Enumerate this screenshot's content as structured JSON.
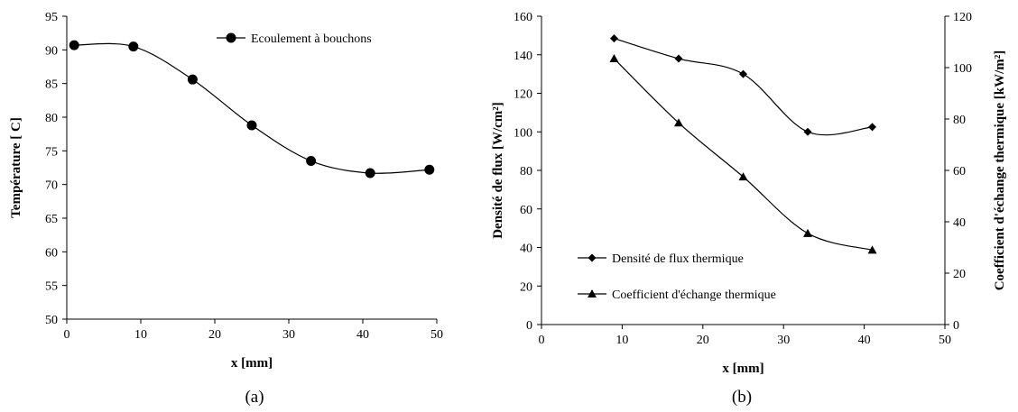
{
  "chart_data": [
    {
      "type": "line",
      "panel_label": "(a)",
      "xlabel": "x [mm]",
      "ylabel": "Température [  C]",
      "xlim": [
        0,
        50
      ],
      "ylim": [
        50,
        95
      ],
      "xticks": [
        0,
        10,
        20,
        30,
        40,
        50
      ],
      "yticks": [
        50,
        55,
        60,
        65,
        70,
        75,
        80,
        85,
        90,
        95
      ],
      "grid": false,
      "legend_position": "top-right",
      "series": [
        {
          "name": "Ecoulement à bouchons",
          "marker": "circle",
          "x": [
            1,
            9,
            17,
            25,
            33,
            41,
            49
          ],
          "y": [
            90.7,
            90.5,
            85.6,
            78.8,
            73.5,
            71.7,
            72.2
          ]
        }
      ]
    },
    {
      "type": "line",
      "panel_label": "(b)",
      "xlabel": "x [mm]",
      "ylabel": "Densité de  flux [W/cm²]",
      "y2label": "Coefficient d'échange thermique [kW/m²]",
      "xlim": [
        0,
        50
      ],
      "ylim": [
        0,
        160
      ],
      "y2lim": [
        0,
        120
      ],
      "xticks": [
        0,
        10,
        20,
        30,
        40,
        50
      ],
      "yticks": [
        0,
        20,
        40,
        60,
        80,
        100,
        120,
        140,
        160
      ],
      "y2ticks": [
        0,
        20,
        40,
        60,
        80,
        100,
        120
      ],
      "grid": false,
      "legend_position": "bottom-left",
      "series": [
        {
          "name": "Densité de flux thermique",
          "marker": "diamond",
          "axis": "left",
          "x": [
            9,
            17,
            25,
            33,
            41
          ],
          "y": [
            148.5,
            138,
            130,
            100,
            102.5
          ]
        },
        {
          "name": "Coefficient d'échange thermique",
          "marker": "triangle",
          "axis": "right",
          "x": [
            9,
            17,
            25,
            33,
            41
          ],
          "y": [
            103.5,
            78.5,
            57.5,
            35.5,
            29
          ]
        }
      ]
    }
  ]
}
